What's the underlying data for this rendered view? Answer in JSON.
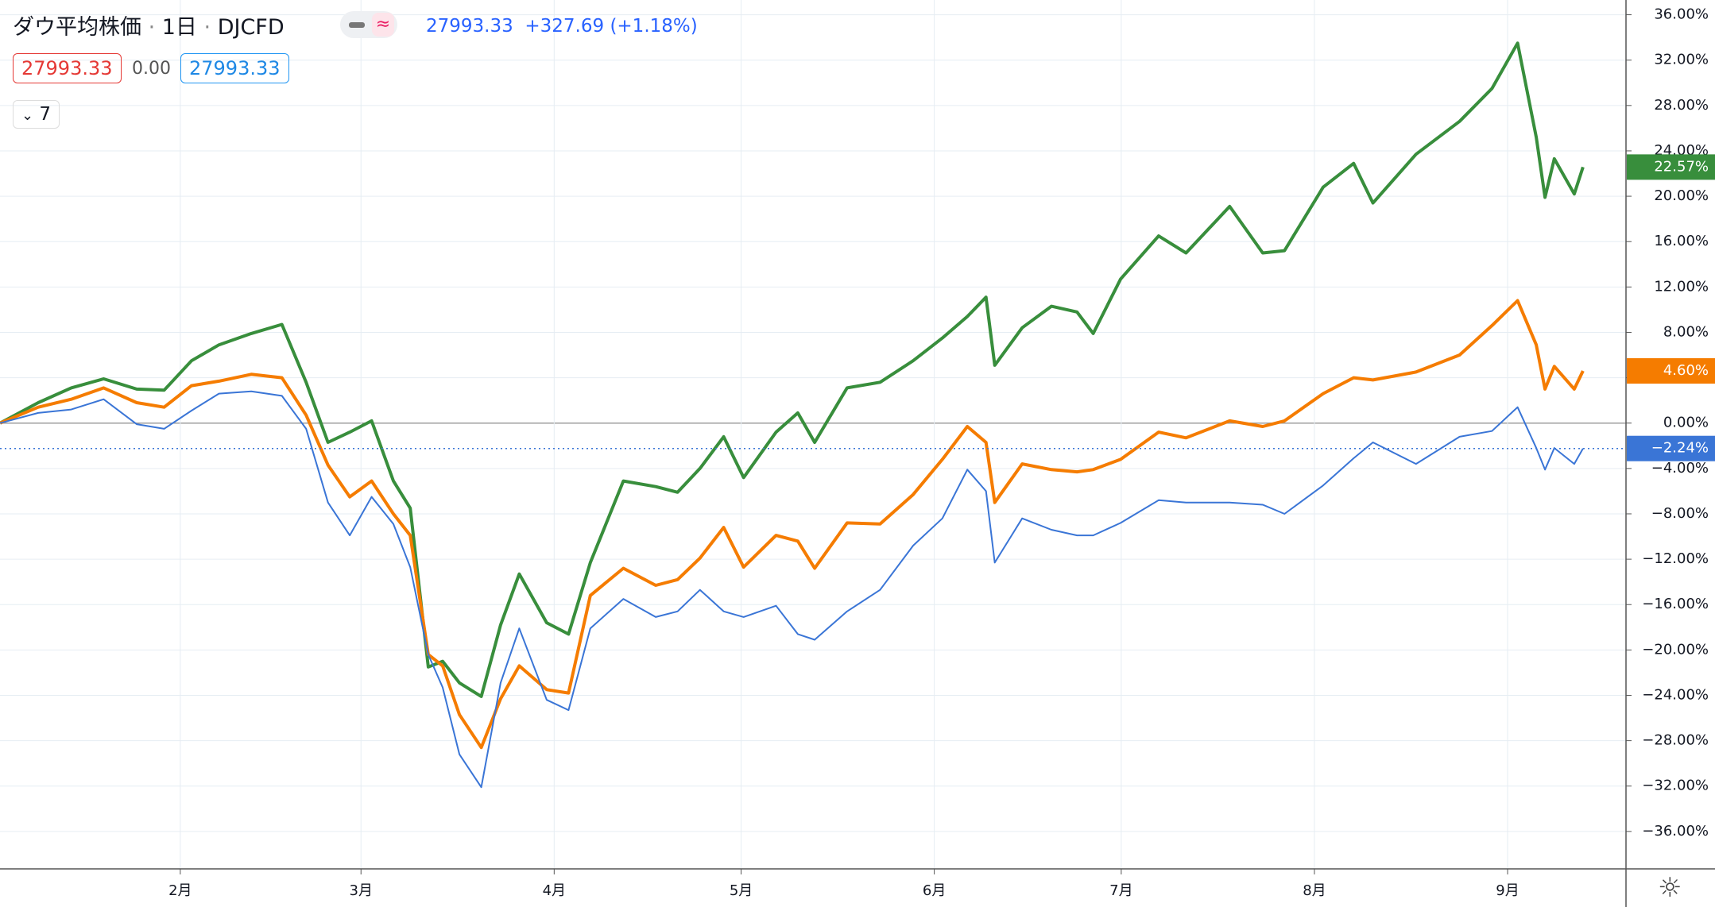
{
  "chart_data": {
    "type": "line",
    "header": {
      "symbol": "ダウ平均株価",
      "interval": "1日",
      "exchange": "DJCFD",
      "price": "27993.33",
      "change": "+327.69",
      "change_pct": "(+1.18%)",
      "open_box": "27993.33",
      "diff": "0.00",
      "close_box": "27993.33",
      "indicators": "7"
    },
    "x": [
      3.1,
      9.2,
      14.5,
      19.7,
      25.0,
      29.4,
      33.8,
      38.2,
      43.4,
      48.3,
      52.2,
      55.7,
      59.2,
      62.7,
      66.2,
      68.9,
      71.8,
      74.1,
      76.8,
      80.3,
      83.4,
      86.4,
      90.8,
      94.3,
      97.8,
      103.1,
      108.3,
      111.8,
      115.4,
      119.2,
      122.4,
      127.6,
      131.1,
      133.8,
      139.0,
      144.3,
      149.6,
      154.3,
      158.3,
      161.3,
      162.7,
      167.1,
      171.8,
      175.9,
      178.5,
      182.9,
      189.0,
      193.4,
      200.4,
      205.7,
      209.2,
      215.4,
      220.3,
      223.4,
      230.3,
      237.3,
      242.5,
      246.6,
      249.6,
      251.0,
      252.5,
      255.7,
      257.1
    ],
    "series": [
      {
        "color": "#388e3c",
        "width": 4,
        "last_label": "22.57%",
        "values": [
          0,
          1.8,
          3.1,
          3.9,
          3.0,
          2.9,
          5.5,
          6.9,
          7.9,
          8.7,
          3.6,
          -1.7,
          -0.8,
          0.2,
          -5.1,
          -7.5,
          -21.5,
          -21.0,
          -22.9,
          -24.1,
          -17.8,
          -13.3,
          -17.6,
          -18.6,
          -12.3,
          -5.1,
          -5.6,
          -6.1,
          -4.0,
          -1.2,
          -4.8,
          -0.8,
          0.9,
          -1.7,
          3.1,
          3.6,
          5.5,
          7.5,
          9.4,
          11.1,
          5.1,
          8.4,
          10.3,
          9.8,
          7.9,
          12.7,
          16.5,
          15.0,
          19.1,
          15.0,
          15.2,
          20.8,
          22.9,
          19.4,
          23.7,
          26.6,
          29.5,
          33.5,
          25.2,
          19.9,
          23.3,
          20.2,
          22.57
        ]
      },
      {
        "color": "#f57c00",
        "width": 4,
        "last_label": "4.60%",
        "values": [
          0,
          1.4,
          2.1,
          3.1,
          1.8,
          1.4,
          3.3,
          3.7,
          4.3,
          4.0,
          0.7,
          -3.7,
          -6.5,
          -5.1,
          -8.0,
          -9.9,
          -20.4,
          -21.4,
          -25.7,
          -28.6,
          -24.3,
          -21.4,
          -23.5,
          -23.8,
          -15.2,
          -12.8,
          -14.3,
          -13.8,
          -11.9,
          -9.2,
          -12.7,
          -9.9,
          -10.4,
          -12.8,
          -8.8,
          -8.9,
          -6.3,
          -3.2,
          -0.3,
          -1.7,
          -7.0,
          -3.6,
          -4.1,
          -4.3,
          -4.1,
          -3.2,
          -0.8,
          -1.3,
          0.2,
          -0.3,
          0.2,
          2.6,
          4.0,
          3.8,
          4.5,
          6.0,
          8.6,
          10.8,
          6.9,
          3.0,
          5.0,
          3.0,
          4.6
        ]
      },
      {
        "color": "#3a75d6",
        "width": 2,
        "last_label": "−2.24%",
        "price_line": true,
        "values": [
          0,
          0.9,
          1.2,
          2.1,
          -0.1,
          -0.5,
          1.1,
          2.6,
          2.8,
          2.4,
          -0.5,
          -7.0,
          -9.9,
          -6.5,
          -8.9,
          -12.7,
          -20.4,
          -23.3,
          -29.2,
          -32.1,
          -22.9,
          -18.1,
          -24.4,
          -25.3,
          -18.1,
          -15.5,
          -17.1,
          -16.6,
          -14.7,
          -16.6,
          -17.1,
          -16.1,
          -18.6,
          -19.1,
          -16.6,
          -14.7,
          -10.8,
          -8.4,
          -4.1,
          -6.0,
          -12.3,
          -8.4,
          -9.4,
          -9.9,
          -9.9,
          -8.8,
          -6.8,
          -7.0,
          -7.0,
          -7.2,
          -8.0,
          -5.5,
          -3.1,
          -1.7,
          -3.6,
          -1.2,
          -0.7,
          1.4,
          -2.2,
          -4.1,
          -2.2,
          -3.6,
          -2.24
        ]
      }
    ],
    "xlim": [
      3.07,
      264
    ],
    "xticks": [
      {
        "value": 32,
        "label": "2月"
      },
      {
        "value": 61,
        "label": "3月"
      },
      {
        "value": 92,
        "label": "4月"
      },
      {
        "value": 122,
        "label": "5月"
      },
      {
        "value": 153,
        "label": "6月"
      },
      {
        "value": 183,
        "label": "7月"
      },
      {
        "value": 214,
        "label": "8月"
      },
      {
        "value": 245,
        "label": "9月"
      }
    ],
    "ylim": [
      -39.3,
      37.3
    ],
    "yticks": [
      {
        "value": -36,
        "label": "−36.00%"
      },
      {
        "value": -32,
        "label": "−32.00%"
      },
      {
        "value": -28,
        "label": "−28.00%"
      },
      {
        "value": -24,
        "label": "−24.00%"
      },
      {
        "value": -20,
        "label": "−20.00%"
      },
      {
        "value": -16,
        "label": "−16.00%"
      },
      {
        "value": -12,
        "label": "−12.00%"
      },
      {
        "value": -8,
        "label": "−8.00%"
      },
      {
        "value": -4,
        "label": "−4.00%"
      },
      {
        "value": 0,
        "label": "0.00%"
      },
      {
        "value": 4,
        "label": "4.00%"
      },
      {
        "value": 8,
        "label": "8.00%"
      },
      {
        "value": 12,
        "label": "12.00%"
      },
      {
        "value": 16,
        "label": "16.00%"
      },
      {
        "value": 20,
        "label": "20.00%"
      },
      {
        "value": 24,
        "label": "24.00%"
      },
      {
        "value": 28,
        "label": "28.00%"
      },
      {
        "value": 32,
        "label": "32.00%"
      },
      {
        "value": 36,
        "label": "36.00%"
      }
    ],
    "grid": true
  }
}
